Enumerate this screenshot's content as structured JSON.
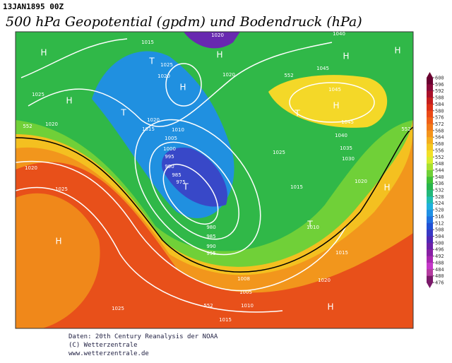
{
  "header": {
    "date": "13JAN1895  00Z",
    "title": "500 hPa Geopotential (gpdm) und Bodendruck (hPa)"
  },
  "colorbar": {
    "ticks": [
      600,
      596,
      592,
      588,
      584,
      580,
      576,
      572,
      568,
      564,
      560,
      556,
      552,
      548,
      544,
      540,
      536,
      532,
      528,
      524,
      520,
      516,
      512,
      508,
      504,
      500,
      496,
      492,
      488,
      484,
      480,
      476
    ],
    "colors": [
      "#6a0030",
      "#8a0a3a",
      "#a8102a",
      "#c41e1e",
      "#dc3018",
      "#ea4a18",
      "#f06018",
      "#f27a1a",
      "#f4941c",
      "#f4ae1e",
      "#f4c820",
      "#f2e028",
      "#d8ec30",
      "#a8e030",
      "#70d038",
      "#40c038",
      "#28b44c",
      "#22b87a",
      "#20bcb0",
      "#20b0dc",
      "#2090e4",
      "#2070e0",
      "#2050d4",
      "#3838c4",
      "#5028b4",
      "#6c20a8",
      "#8820a4",
      "#a828b0",
      "#c438c8",
      "#b43ca0",
      "#7a1a6a"
    ]
  },
  "map_labels": [
    "H",
    "H",
    "H",
    "H",
    "H",
    "H",
    "H",
    "H",
    "H",
    "H",
    "T",
    "T",
    "T",
    "T",
    "T",
    "1020",
    "1040",
    "1015",
    "1025",
    "1020",
    "1020",
    "1025",
    "1020",
    "1020",
    "1015",
    "1010",
    "1005",
    "1000",
    "995",
    "990",
    "985",
    "975",
    "1045",
    "1045",
    "1045",
    "1040",
    "1035",
    "1030",
    "1025",
    "1020",
    "1015",
    "1010",
    "980",
    "985",
    "990",
    "995",
    "1008",
    "1005",
    "1010",
    "1015",
    "1015",
    "1020",
    "1020",
    "1025",
    "1025",
    "552",
    "552",
    "552",
    "552"
  ],
  "footer": {
    "line1": "Daten: 20th Century Reanalysis der NOAA",
    "line2": "(C) Wetterzentrale",
    "line3": "www.wetterzentrale.de"
  }
}
